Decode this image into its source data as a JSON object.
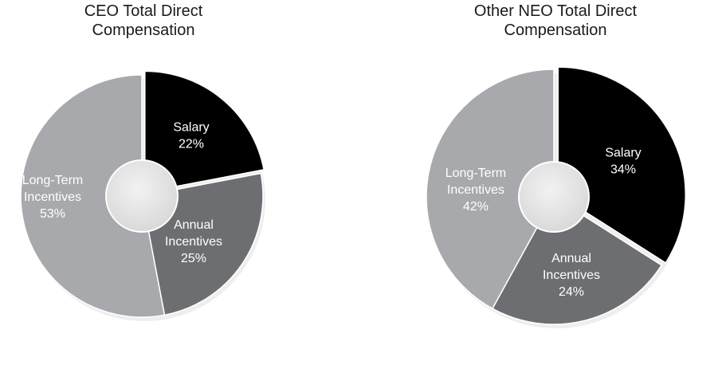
{
  "chart_data": [
    {
      "type": "pie",
      "title_line1": "CEO Total Direct",
      "title_line2": "Compensation",
      "slices": [
        {
          "name_lines": [
            "Salary"
          ],
          "value": 22,
          "value_label": "22%",
          "color": "#000000",
          "text_color": "#ffffff"
        },
        {
          "name_lines": [
            "Annual",
            "Incentives"
          ],
          "value": 25,
          "value_label": "25%",
          "color": "#6d6e71",
          "text_color": "#ffffff"
        },
        {
          "name_lines": [
            "Long-Term",
            "Incentives"
          ],
          "value": 53,
          "value_label": "53%",
          "color": "#a7a9ac",
          "text_color": "#ffffff"
        }
      ]
    },
    {
      "type": "pie",
      "title_line1": "Other NEO Total Direct",
      "title_line2": "Compensation",
      "slices": [
        {
          "name_lines": [
            "Salary"
          ],
          "value": 34,
          "value_label": "34%",
          "color": "#000000",
          "text_color": "#ffffff"
        },
        {
          "name_lines": [
            "Annual",
            "Incentives"
          ],
          "value": 24,
          "value_label": "24%",
          "color": "#6d6e71",
          "text_color": "#ffffff"
        },
        {
          "name_lines": [
            "Long-Term",
            "Incentives"
          ],
          "value": 42,
          "value_label": "42%",
          "color": "#a7a9ac",
          "text_color": "#ffffff"
        }
      ]
    }
  ],
  "colors": {
    "hole_fill": "#d9d9d9",
    "hole_stroke": "#ffffff",
    "shadow": "#cfcfcf"
  }
}
